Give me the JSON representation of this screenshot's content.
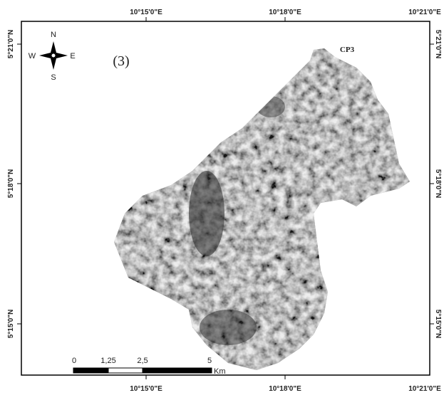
{
  "map": {
    "panel_label": "(3)",
    "point_label": "CP3",
    "compass": {
      "n": "N",
      "e": "E",
      "s": "S",
      "w": "W"
    },
    "top_labels": [
      "10°15'0\"E",
      "10°18'0\"E",
      "10°21'0\"E"
    ],
    "bottom_labels": [
      "10°15'0\"E",
      "10°18'0\"E",
      "10°21'0\"E"
    ],
    "left_labels": [
      "5°21'0\"N",
      "5°18'0\"N",
      "5°15'0\"N"
    ],
    "right_labels": [
      "5°21'0\"N",
      "5°18'0\"N",
      "5°15'0\"N"
    ],
    "scale_labels": [
      "0",
      "1,25",
      "2,5",
      "5"
    ],
    "scale_unit": "Km"
  }
}
